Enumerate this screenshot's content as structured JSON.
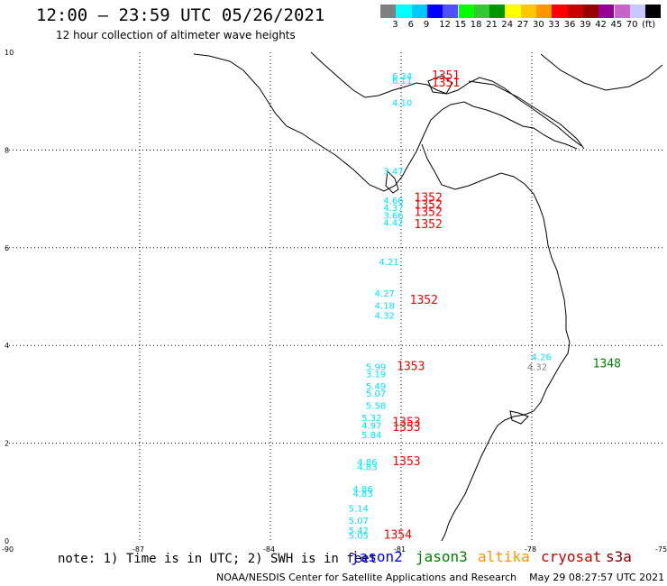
{
  "title": "12:00 – 23:59 UTC 05/26/2021",
  "subtitle": "12 hour collection of altimeter wave heights",
  "legend": {
    "colors": [
      "#808080",
      "#00ffff",
      "#00c8ff",
      "#0000ff",
      "#5050ff",
      "#00ff00",
      "#32c832",
      "#009600",
      "#ffff00",
      "#ffc800",
      "#ff9600",
      "#ff0000",
      "#c80000",
      "#960000",
      "#960096",
      "#c864c8",
      "#c8c8ff",
      "#000000"
    ],
    "labels": [
      "3",
      "6",
      "9",
      "12",
      "15",
      "18",
      "21",
      "24",
      "27",
      "30",
      "33",
      "36",
      "39",
      "42",
      "45",
      "70",
      "(ft)"
    ]
  },
  "axes": {
    "x_ticks": [
      "-90",
      "-87",
      "-84",
      "-81",
      "-78",
      "-75"
    ],
    "y_ticks": [
      "10",
      "8",
      "6",
      "4",
      "2",
      "0"
    ]
  },
  "footnote": "note: 1) Time is in UTC; 2) SWH is in feet",
  "satellites": [
    {
      "name": "jason2",
      "color": "#0000ff"
    },
    {
      "name": "jason3",
      "color": "#008000"
    },
    {
      "name": "altika",
      "color": "#ff9600"
    },
    {
      "name": "cryosat",
      "color": "#c80000"
    },
    {
      "name": "s3a",
      "color": "#800000"
    }
  ],
  "credit": "NOAA/NESDIS Center for Satellite Applications and Research",
  "timestamp": "May 29 08:27:57 UTC 2021",
  "observations": [
    {
      "lon": -81.0,
      "lat": 9.45,
      "swh": "6.34",
      "color": "#00e5ff"
    },
    {
      "lon": -81.0,
      "lat": 9.35,
      "swh": "6.11",
      "color": "#00e5ff"
    },
    {
      "lon": -81.0,
      "lat": 8.9,
      "swh": "4.10",
      "color": "#00e5ff"
    },
    {
      "lon": -81.2,
      "lat": 7.5,
      "swh": "3.47",
      "color": "#00e5ff"
    },
    {
      "lon": -81.2,
      "lat": 6.9,
      "swh": "4.66",
      "color": "#00e5ff"
    },
    {
      "lon": -81.2,
      "lat": 6.75,
      "swh": "4.37",
      "color": "#00e5ff"
    },
    {
      "lon": -81.2,
      "lat": 6.6,
      "swh": "3.66",
      "color": "#00e5ff"
    },
    {
      "lon": -81.2,
      "lat": 6.45,
      "swh": "4.42",
      "color": "#00e5ff"
    },
    {
      "lon": -81.3,
      "lat": 5.65,
      "swh": "4.21",
      "color": "#00e5ff"
    },
    {
      "lon": -81.4,
      "lat": 5.0,
      "swh": "4.27",
      "color": "#00e5ff"
    },
    {
      "lon": -81.4,
      "lat": 4.75,
      "swh": "4.18",
      "color": "#00e5ff"
    },
    {
      "lon": -81.4,
      "lat": 4.55,
      "swh": "4.32",
      "color": "#00e5ff"
    },
    {
      "lon": -81.6,
      "lat": 3.5,
      "swh": "5.99",
      "color": "#00e5ff"
    },
    {
      "lon": -81.6,
      "lat": 3.35,
      "swh": "3.19",
      "color": "#00e5ff"
    },
    {
      "lon": -81.6,
      "lat": 3.1,
      "swh": "5.49",
      "color": "#00e5ff"
    },
    {
      "lon": -81.6,
      "lat": 2.95,
      "swh": "5.07",
      "color": "#00e5ff"
    },
    {
      "lon": -81.6,
      "lat": 2.7,
      "swh": "5.58",
      "color": "#00e5ff"
    },
    {
      "lon": -81.7,
      "lat": 2.45,
      "swh": "5.32",
      "color": "#00e5ff"
    },
    {
      "lon": -81.7,
      "lat": 2.3,
      "swh": "4.97",
      "color": "#00e5ff"
    },
    {
      "lon": -81.7,
      "lat": 2.1,
      "swh": "5.84",
      "color": "#00e5ff"
    },
    {
      "lon": -81.8,
      "lat": 1.55,
      "swh": "4.86",
      "color": "#00e5ff"
    },
    {
      "lon": -81.8,
      "lat": 1.45,
      "swh": "4.83",
      "color": "#00e5ff"
    },
    {
      "lon": -81.9,
      "lat": 1.0,
      "swh": "4.86",
      "color": "#00e5ff"
    },
    {
      "lon": -81.9,
      "lat": 0.9,
      "swh": "4.83",
      "color": "#00e5ff"
    },
    {
      "lon": -82.0,
      "lat": 0.6,
      "swh": "5.14",
      "color": "#00e5ff"
    },
    {
      "lon": -82.0,
      "lat": 0.35,
      "swh": "5.07",
      "color": "#00e5ff"
    },
    {
      "lon": -82.0,
      "lat": 0.15,
      "swh": "5.42",
      "color": "#00e5ff"
    },
    {
      "lon": -82.0,
      "lat": 0.05,
      "swh": "5.05",
      "color": "#00e5ff"
    },
    {
      "lon": -77.8,
      "lat": 3.7,
      "swh": "4.26",
      "color": "#00e5ff"
    },
    {
      "lon": -77.9,
      "lat": 3.5,
      "swh": "4.32",
      "color": "#808080"
    }
  ],
  "passes": [
    {
      "lon": -80.3,
      "lat": 9.45,
      "label": "1351",
      "color": "#ff0000"
    },
    {
      "lon": -80.3,
      "lat": 9.3,
      "label": "1351",
      "color": "#ff0000"
    },
    {
      "lon": -80.7,
      "lat": 6.95,
      "label": "1352",
      "color": "#ff0000"
    },
    {
      "lon": -80.7,
      "lat": 6.8,
      "label": "1352",
      "color": "#ff0000"
    },
    {
      "lon": -80.7,
      "lat": 6.65,
      "label": "1352",
      "color": "#ff0000"
    },
    {
      "lon": -80.7,
      "lat": 6.4,
      "label": "1352",
      "color": "#ff0000"
    },
    {
      "lon": -80.8,
      "lat": 4.85,
      "label": "1352",
      "color": "#ff0000"
    },
    {
      "lon": -81.1,
      "lat": 3.5,
      "label": "1353",
      "color": "#ff0000"
    },
    {
      "lon": -81.2,
      "lat": 2.35,
      "label": "1353",
      "color": "#ff0000"
    },
    {
      "lon": -81.2,
      "lat": 2.25,
      "label": "1353",
      "color": "#ff0000"
    },
    {
      "lon": -81.2,
      "lat": 1.55,
      "label": "1353",
      "color": "#ff0000"
    },
    {
      "lon": -81.4,
      "lat": 0.05,
      "label": "1354",
      "color": "#ff0000"
    },
    {
      "lon": -76.6,
      "lat": 3.55,
      "label": "1348",
      "color": "#008000"
    }
  ]
}
